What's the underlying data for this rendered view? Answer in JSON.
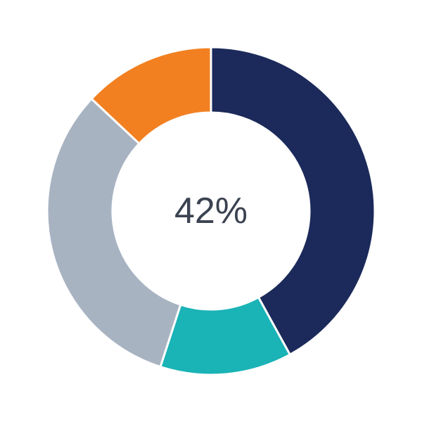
{
  "chart_data": {
    "type": "pie",
    "variant": "donut",
    "center_label": "42%",
    "start": "top",
    "direction": "clockwise",
    "slices": [
      {
        "value": 42,
        "color": "#1b2a5a"
      },
      {
        "value": 13,
        "color": "#1ab3b6"
      },
      {
        "value": 32,
        "color": "#a8b3c2"
      },
      {
        "value": 13,
        "color": "#f28021"
      }
    ],
    "legend": "none"
  }
}
